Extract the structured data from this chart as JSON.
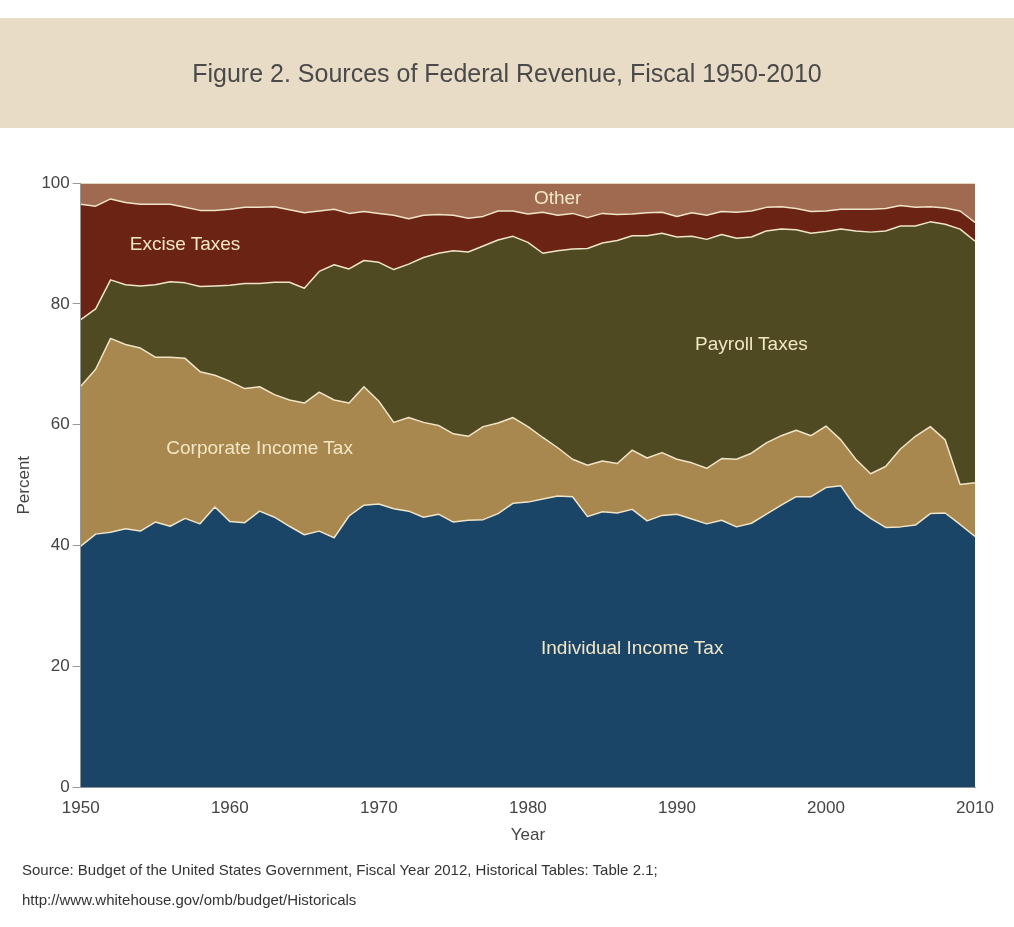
{
  "chart_data": {
    "type": "area",
    "title": "Figure 2. Sources of Federal Revenue, Fiscal 1950-2010",
    "xlabel": "Year",
    "ylabel": "Percent",
    "stacked": true,
    "grid": false,
    "legend": false,
    "x": [
      1950,
      1951,
      1952,
      1953,
      1954,
      1955,
      1956,
      1957,
      1958,
      1959,
      1960,
      1961,
      1962,
      1963,
      1964,
      1965,
      1966,
      1967,
      1968,
      1969,
      1970,
      1971,
      1972,
      1973,
      1974,
      1975,
      1976,
      1977,
      1978,
      1979,
      1980,
      1981,
      1982,
      1983,
      1984,
      1985,
      1986,
      1987,
      1988,
      1989,
      1990,
      1991,
      1992,
      1993,
      1994,
      1995,
      1996,
      1997,
      1998,
      1999,
      2000,
      2001,
      2002,
      2003,
      2004,
      2005,
      2006,
      2007,
      2008,
      2009,
      2010
    ],
    "xlim": [
      1950,
      2010
    ],
    "xticks": [
      1950,
      1960,
      1970,
      1980,
      1990,
      2000,
      2010
    ],
    "ylim": [
      0,
      100
    ],
    "yticks": [
      0,
      20,
      40,
      60,
      80,
      100
    ],
    "series": [
      {
        "name": "Individual Income Tax",
        "color": "#1a4566",
        "values": [
          39.9,
          41.9,
          42.2,
          42.8,
          42.4,
          43.9,
          43.2,
          44.5,
          43.6,
          46.4,
          44.0,
          43.8,
          45.7,
          44.7,
          43.2,
          41.8,
          42.4,
          41.3,
          44.9,
          46.7,
          46.9,
          46.1,
          45.7,
          44.7,
          45.2,
          43.9,
          44.2,
          44.3,
          45.3,
          47.0,
          47.2,
          47.7,
          48.2,
          48.1,
          44.8,
          45.6,
          45.4,
          46.0,
          44.1,
          45.0,
          45.2,
          44.4,
          43.6,
          44.2,
          43.1,
          43.7,
          45.2,
          46.7,
          48.1,
          48.1,
          49.6,
          49.9,
          46.3,
          44.5,
          43.0,
          43.1,
          43.4,
          45.3,
          45.4,
          43.5,
          41.5
        ]
      },
      {
        "name": "Corporate Income Tax",
        "color": "#a8884e",
        "values": [
          26.5,
          27.3,
          32.1,
          30.5,
          30.3,
          27.3,
          28.0,
          26.5,
          25.2,
          21.8,
          23.2,
          22.2,
          20.6,
          20.3,
          20.9,
          21.8,
          23.0,
          22.8,
          18.7,
          19.6,
          17.0,
          14.3,
          15.5,
          15.7,
          14.7,
          14.6,
          13.9,
          15.4,
          15.0,
          14.2,
          12.5,
          10.2,
          8.0,
          6.2,
          8.5,
          8.4,
          8.2,
          9.8,
          10.4,
          10.4,
          9.1,
          9.3,
          9.2,
          10.2,
          11.2,
          11.6,
          11.8,
          11.5,
          11.0,
          10.1,
          10.2,
          7.6,
          8.0,
          7.4,
          10.1,
          12.9,
          14.7,
          14.4,
          12.1,
          6.6,
          8.9
        ]
      },
      {
        "name": "Payroll Taxes",
        "color": "#4f4a22",
        "values": [
          11.0,
          10.0,
          9.7,
          9.9,
          10.3,
          12.0,
          12.5,
          12.5,
          14.1,
          14.8,
          15.9,
          17.4,
          17.1,
          18.6,
          19.5,
          19.0,
          20.0,
          22.4,
          22.2,
          20.9,
          23.0,
          25.3,
          25.4,
          27.3,
          28.5,
          30.3,
          30.5,
          29.9,
          30.3,
          30.0,
          30.5,
          30.5,
          32.6,
          34.8,
          35.9,
          36.1,
          36.9,
          35.5,
          36.8,
          36.3,
          36.8,
          37.5,
          37.9,
          37.1,
          36.6,
          35.8,
          35.1,
          34.2,
          33.2,
          33.5,
          32.2,
          34.9,
          37.8,
          40.0,
          39.0,
          36.9,
          34.8,
          33.9,
          35.7,
          42.3,
          40.0
        ]
      },
      {
        "name": "Excise Taxes",
        "color": "#6b2414",
        "values": [
          19.1,
          17.0,
          13.4,
          13.6,
          13.5,
          13.3,
          12.8,
          12.5,
          12.6,
          12.5,
          12.6,
          12.6,
          12.6,
          12.5,
          12.0,
          12.5,
          10.0,
          9.2,
          9.2,
          8.1,
          8.1,
          9.0,
          7.5,
          7.0,
          6.4,
          5.9,
          5.6,
          4.9,
          4.8,
          4.2,
          4.7,
          6.8,
          5.9,
          5.9,
          5.1,
          4.9,
          4.3,
          3.6,
          3.8,
          3.5,
          3.4,
          3.9,
          4.0,
          3.8,
          4.3,
          4.3,
          3.9,
          3.7,
          3.5,
          3.6,
          3.4,
          3.3,
          3.6,
          3.8,
          3.7,
          3.4,
          3.1,
          2.5,
          2.7,
          3.0,
          3.1
        ]
      },
      {
        "name": "Other",
        "color": "#a06a50",
        "values": [
          3.5,
          3.8,
          2.6,
          3.2,
          3.5,
          3.5,
          3.5,
          4.0,
          4.5,
          4.5,
          4.3,
          4.0,
          4.0,
          3.9,
          4.4,
          4.9,
          4.6,
          4.3,
          5.0,
          4.7,
          5.0,
          5.3,
          5.9,
          5.3,
          5.2,
          5.3,
          5.8,
          5.5,
          4.6,
          4.6,
          5.1,
          4.8,
          5.3,
          5.0,
          5.7,
          5.0,
          5.2,
          5.1,
          4.9,
          4.8,
          5.5,
          4.9,
          5.3,
          4.7,
          4.8,
          4.6,
          4.0,
          3.9,
          4.2,
          4.7,
          4.6,
          4.3,
          4.3,
          4.3,
          4.2,
          3.7,
          4.0,
          3.9,
          4.1,
          4.6,
          6.5
        ]
      }
    ],
    "annotations": [
      "Source: Budget of the United States Government, Fiscal Year 2012, Historical Tables: Table 2.1;\nhttp://www.whitehouse.gov/omb/budget/Historicals"
    ]
  }
}
